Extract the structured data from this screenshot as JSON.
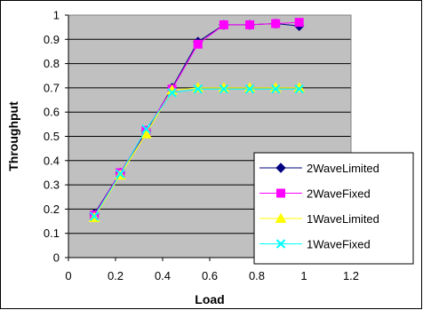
{
  "chart_data": {
    "type": "line",
    "title": "",
    "xlabel": "Load",
    "ylabel": "Throughput",
    "xlim": [
      0,
      1.2
    ],
    "ylim": [
      0,
      1
    ],
    "x_ticks": [
      "0",
      "0.2",
      "0.4",
      "0.6",
      "0.8",
      "1",
      "1.2"
    ],
    "y_ticks": [
      "0",
      "0.1",
      "0.2",
      "0.3",
      "0.4",
      "0.5",
      "0.6",
      "0.7",
      "0.8",
      "0.9",
      "1"
    ],
    "grid": true,
    "plot_background": "#c0c0c0",
    "legend_position": "lower-right",
    "series": [
      {
        "name": "2WaveLimited",
        "color": "#000080",
        "marker": "diamond",
        "x": [
          0.11,
          0.22,
          0.33,
          0.44,
          0.55,
          0.66,
          0.77,
          0.88,
          0.98
        ],
        "y": [
          0.18,
          0.35,
          0.52,
          0.7,
          0.89,
          0.96,
          0.96,
          0.965,
          0.955
        ]
      },
      {
        "name": "2WaveFixed",
        "color": "#ff00ff",
        "marker": "square",
        "x": [
          0.11,
          0.22,
          0.33,
          0.44,
          0.55,
          0.66,
          0.77,
          0.88,
          0.98
        ],
        "y": [
          0.175,
          0.35,
          0.525,
          0.695,
          0.88,
          0.96,
          0.96,
          0.965,
          0.97
        ]
      },
      {
        "name": "1WaveLimited",
        "color": "#ffff00",
        "marker": "triangle",
        "x": [
          0.11,
          0.22,
          0.33,
          0.44,
          0.55,
          0.66,
          0.77,
          0.88,
          0.98
        ],
        "y": [
          0.165,
          0.34,
          0.51,
          0.69,
          0.7,
          0.7,
          0.7,
          0.7,
          0.7
        ]
      },
      {
        "name": "1WaveFixed",
        "color": "#00ffff",
        "marker": "x",
        "x": [
          0.11,
          0.22,
          0.33,
          0.44,
          0.55,
          0.66,
          0.77,
          0.88,
          0.98
        ],
        "y": [
          0.17,
          0.345,
          0.53,
          0.68,
          0.695,
          0.695,
          0.695,
          0.695,
          0.695
        ]
      }
    ]
  }
}
